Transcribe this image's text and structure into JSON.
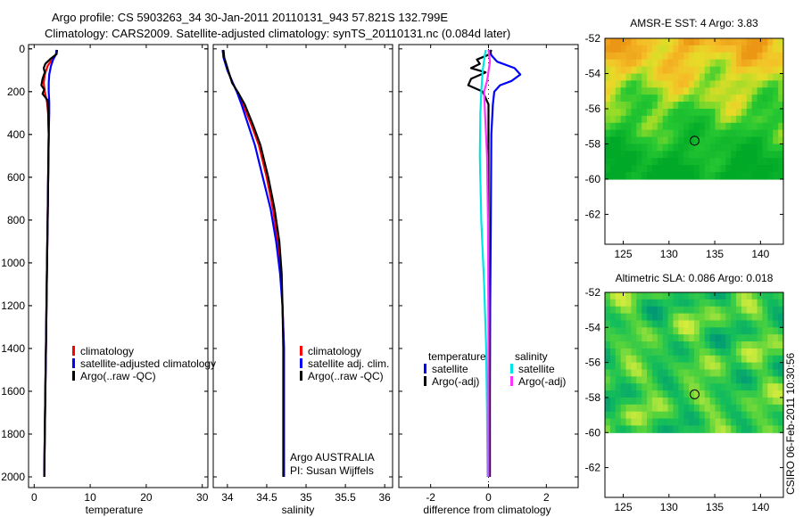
{
  "title": {
    "line1": "Argo profile: CS 5903263_34 30-Jan-2011 20110131_943 57.821S 132.799E",
    "line2": "Climatology: CARS2009. Satellite-adjusted climatology: synTS_20110131.nc (0.084d later)"
  },
  "credit": "CSIRO 06-Feb-2011 10:30:56",
  "colors": {
    "climatology": "#ff0000",
    "satellite": "#0000ff",
    "argo": "#000000",
    "salinity_satellite": "#00e5e5",
    "salinity_argo": "#ff33ff"
  },
  "chart_data": [
    {
      "type": "line",
      "title": "",
      "xlabel": "temperature",
      "ylabel": "",
      "xlim": [
        -1,
        31
      ],
      "ylim": [
        2050,
        -20
      ],
      "xticks": [
        0,
        10,
        20,
        30
      ],
      "yticks": [
        0,
        200,
        400,
        600,
        800,
        1000,
        1200,
        1400,
        1600,
        1800,
        2000
      ],
      "legend": [
        "climatology",
        "satellite-adjusted climatology",
        "Argo(..raw -QC)"
      ],
      "series": [
        {
          "name": "climatology",
          "color": "#ff0000",
          "points": [
            [
              4.0,
              5
            ],
            [
              3.9,
              25
            ],
            [
              3.2,
              50
            ],
            [
              2.4,
              80
            ],
            [
              1.9,
              120
            ],
            [
              1.7,
              160
            ],
            [
              1.9,
              200
            ],
            [
              2.3,
              250
            ],
            [
              2.5,
              300
            ],
            [
              2.6,
              400
            ],
            [
              2.5,
              600
            ],
            [
              2.4,
              800
            ],
            [
              2.3,
              1000
            ],
            [
              2.2,
              1200
            ],
            [
              2.1,
              1400
            ],
            [
              2.0,
              1600
            ],
            [
              1.9,
              1800
            ],
            [
              1.8,
              2000
            ]
          ]
        },
        {
          "name": "satellite-adjusted climatology",
          "color": "#0000ff",
          "points": [
            [
              4.0,
              5
            ],
            [
              3.9,
              25
            ],
            [
              3.4,
              50
            ],
            [
              3.0,
              80
            ],
            [
              2.7,
              120
            ],
            [
              2.6,
              160
            ],
            [
              2.6,
              200
            ],
            [
              2.7,
              250
            ],
            [
              2.7,
              300
            ],
            [
              2.6,
              400
            ],
            [
              2.5,
              600
            ],
            [
              2.4,
              800
            ],
            [
              2.3,
              1000
            ],
            [
              2.2,
              1200
            ],
            [
              2.1,
              1400
            ],
            [
              2.0,
              1600
            ],
            [
              1.9,
              1800
            ],
            [
              1.8,
              2000
            ]
          ]
        },
        {
          "name": "Argo(..raw -QC)",
          "color": "#000000",
          "points": [
            [
              4.1,
              5
            ],
            [
              4.0,
              25
            ],
            [
              3.0,
              45
            ],
            [
              2.0,
              70
            ],
            [
              1.7,
              90
            ],
            [
              1.9,
              110
            ],
            [
              1.5,
              140
            ],
            [
              1.3,
              170
            ],
            [
              1.8,
              190
            ],
            [
              1.5,
              210
            ],
            [
              2.4,
              240
            ],
            [
              2.5,
              300
            ],
            [
              2.6,
              400
            ],
            [
              2.5,
              600
            ],
            [
              2.4,
              800
            ],
            [
              2.3,
              1000
            ],
            [
              2.2,
              1200
            ],
            [
              2.1,
              1400
            ],
            [
              2.0,
              1600
            ],
            [
              1.9,
              1800
            ],
            [
              1.8,
              2000
            ]
          ]
        }
      ]
    },
    {
      "type": "line",
      "title": "",
      "xlabel": "salinity",
      "ylabel": "",
      "xlim": [
        33.82,
        36.1
      ],
      "ylim": [
        2050,
        -20
      ],
      "xticks": [
        34,
        34.5,
        35,
        35.5,
        36
      ],
      "tick_labels": [
        "34",
        "34.5",
        "35",
        "35.5",
        "36"
      ],
      "legend": [
        "climatology",
        "satellite adj. clim.",
        "Argo(..raw -QC)"
      ],
      "annotation": [
        "Argo AUSTRALIA",
        "PI: Susan Wijffels"
      ],
      "series": [
        {
          "name": "climatology",
          "color": "#ff0000",
          "points": [
            [
              33.94,
              5
            ],
            [
              33.95,
              40
            ],
            [
              34.0,
              100
            ],
            [
              34.07,
              160
            ],
            [
              34.12,
              200
            ],
            [
              34.2,
              260
            ],
            [
              34.3,
              350
            ],
            [
              34.4,
              450
            ],
            [
              34.5,
              600
            ],
            [
              34.58,
              750
            ],
            [
              34.64,
              900
            ],
            [
              34.68,
              1050
            ],
            [
              34.7,
              1200
            ],
            [
              34.72,
              1400
            ],
            [
              34.72,
              1600
            ],
            [
              34.72,
              1800
            ],
            [
              34.72,
              2000
            ]
          ]
        },
        {
          "name": "satellite adj. clim.",
          "color": "#0000ff",
          "points": [
            [
              33.94,
              5
            ],
            [
              33.95,
              40
            ],
            [
              34.0,
              100
            ],
            [
              34.07,
              160
            ],
            [
              34.12,
              200
            ],
            [
              34.18,
              260
            ],
            [
              34.26,
              350
            ],
            [
              34.35,
              450
            ],
            [
              34.45,
              600
            ],
            [
              34.55,
              750
            ],
            [
              34.62,
              900
            ],
            [
              34.67,
              1050
            ],
            [
              34.7,
              1200
            ],
            [
              34.72,
              1400
            ],
            [
              34.72,
              1600
            ],
            [
              34.72,
              1800
            ],
            [
              34.72,
              2000
            ]
          ]
        },
        {
          "name": "Argo(..raw -QC)",
          "color": "#000000",
          "points": [
            [
              33.95,
              5
            ],
            [
              33.96,
              40
            ],
            [
              34.01,
              100
            ],
            [
              34.06,
              160
            ],
            [
              34.13,
              200
            ],
            [
              34.22,
              260
            ],
            [
              34.32,
              350
            ],
            [
              34.42,
              450
            ],
            [
              34.52,
              600
            ],
            [
              34.6,
              750
            ],
            [
              34.66,
              900
            ],
            [
              34.69,
              1050
            ],
            [
              34.7,
              1200
            ],
            [
              34.71,
              1400
            ],
            [
              34.71,
              1600
            ],
            [
              34.71,
              1800
            ],
            [
              34.71,
              2000
            ]
          ]
        }
      ]
    },
    {
      "type": "line",
      "title": "",
      "xlabel": "difference from climatology",
      "ylabel": "",
      "xlim": [
        -3.1,
        3.1
      ],
      "ylim": [
        2050,
        -20
      ],
      "xticks": [
        -2,
        0,
        2
      ],
      "legend_groups": [
        {
          "heading": "temperature",
          "items": [
            "satellite",
            "Argo(-adj)"
          ]
        },
        {
          "heading": "salinity",
          "items": [
            "satellite",
            "Argo(-adj)"
          ]
        }
      ],
      "series": [
        {
          "name": "temperature satellite",
          "color": "#0000ff",
          "points": [
            [
              0.05,
              5
            ],
            [
              0.1,
              30
            ],
            [
              0.3,
              60
            ],
            [
              0.9,
              90
            ],
            [
              1.1,
              120
            ],
            [
              0.8,
              150
            ],
            [
              0.4,
              170
            ],
            [
              0.2,
              200
            ],
            [
              0.15,
              260
            ],
            [
              0.1,
              400
            ],
            [
              0.08,
              800
            ],
            [
              0.06,
              1200
            ],
            [
              0.05,
              1600
            ],
            [
              0.05,
              2000
            ]
          ]
        },
        {
          "name": "temperature Argo(-adj)",
          "color": "#000000",
          "points": [
            [
              0.1,
              5
            ],
            [
              0.05,
              25
            ],
            [
              -0.4,
              50
            ],
            [
              -0.3,
              70
            ],
            [
              -0.6,
              90
            ],
            [
              -0.1,
              110
            ],
            [
              -0.6,
              140
            ],
            [
              -0.7,
              170
            ],
            [
              -0.2,
              200
            ],
            [
              -0.1,
              230
            ],
            [
              0.0,
              260
            ],
            [
              0.0,
              400
            ],
            [
              0.0,
              800
            ],
            [
              0.0,
              1200
            ],
            [
              0.02,
              1600
            ],
            [
              0.02,
              2000
            ]
          ]
        },
        {
          "name": "salinity satellite",
          "color": "#00e5e5",
          "points": [
            [
              -0.1,
              5
            ],
            [
              -0.2,
              100
            ],
            [
              -0.25,
              200
            ],
            [
              -0.28,
              300
            ],
            [
              -0.3,
              500
            ],
            [
              -0.25,
              800
            ],
            [
              -0.15,
              1100
            ],
            [
              -0.08,
              1400
            ],
            [
              -0.05,
              1700
            ],
            [
              -0.03,
              2000
            ]
          ]
        },
        {
          "name": "salinity Argo(-adj)",
          "color": "#ff33ff",
          "points": [
            [
              0.0,
              5
            ],
            [
              0.05,
              60
            ],
            [
              -0.05,
              150
            ],
            [
              -0.15,
              200
            ],
            [
              -0.12,
              300
            ],
            [
              -0.05,
              500
            ],
            [
              -0.02,
              800
            ],
            [
              0.0,
              1200
            ],
            [
              0.0,
              1600
            ],
            [
              0.0,
              2000
            ]
          ]
        }
      ]
    },
    {
      "type": "heatmap",
      "title": "AMSR-E SST: 4 Argo: 3.83",
      "xlim": [
        123,
        142.5
      ],
      "ylim": [
        -63.7,
        -52
      ],
      "xticks": [
        125,
        130,
        135,
        140
      ],
      "yticks": [
        -52,
        -54,
        -56,
        -58,
        -60,
        -62
      ],
      "data_lat_range": [
        -60,
        -52
      ],
      "argo_position": [
        132.799,
        -57.821
      ]
    },
    {
      "type": "heatmap",
      "title": "Altimetric SLA: 0.086 Argo: 0.018",
      "xlim": [
        123,
        142.5
      ],
      "ylim": [
        -63.7,
        -52
      ],
      "xticks": [
        125,
        130,
        135,
        140
      ],
      "yticks": [
        -52,
        -54,
        -56,
        -58,
        -60,
        -62
      ],
      "data_lat_range": [
        -60,
        -52
      ],
      "argo_position": [
        132.799,
        -57.821
      ]
    }
  ]
}
